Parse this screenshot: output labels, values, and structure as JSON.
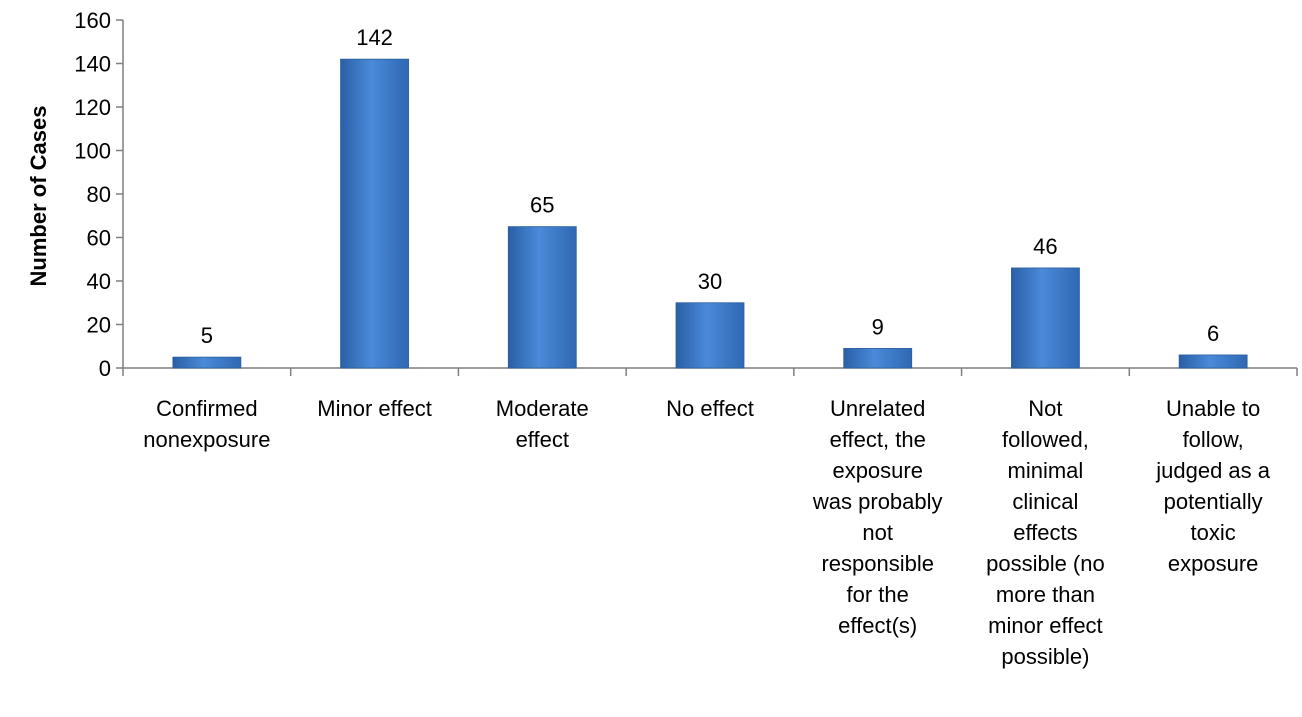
{
  "chart_data": {
    "type": "bar",
    "title": "",
    "xlabel": "",
    "ylabel": "Number of Cases",
    "ylim": [
      0,
      160
    ],
    "yticks": [
      0,
      20,
      40,
      60,
      80,
      100,
      120,
      140,
      160
    ],
    "grid": false,
    "legend": "none",
    "bar_color": "#3f7fcf",
    "categories": [
      [
        "Confirmed",
        "nonexposure"
      ],
      [
        "Minor effect"
      ],
      [
        "Moderate",
        "effect"
      ],
      [
        "No effect"
      ],
      [
        "Unrelated",
        "effect, the",
        "exposure",
        "was probably",
        "not",
        "responsible",
        "for the",
        "effect(s)"
      ],
      [
        "Not",
        "followed,",
        "minimal",
        "clinical",
        "effects",
        "possible (no",
        "more than",
        "minor effect",
        "possible)"
      ],
      [
        "Unable to",
        "follow,",
        "judged as a",
        "potentially",
        "toxic",
        "exposure"
      ]
    ],
    "values": [
      5,
      142,
      65,
      30,
      9,
      46,
      6
    ]
  }
}
